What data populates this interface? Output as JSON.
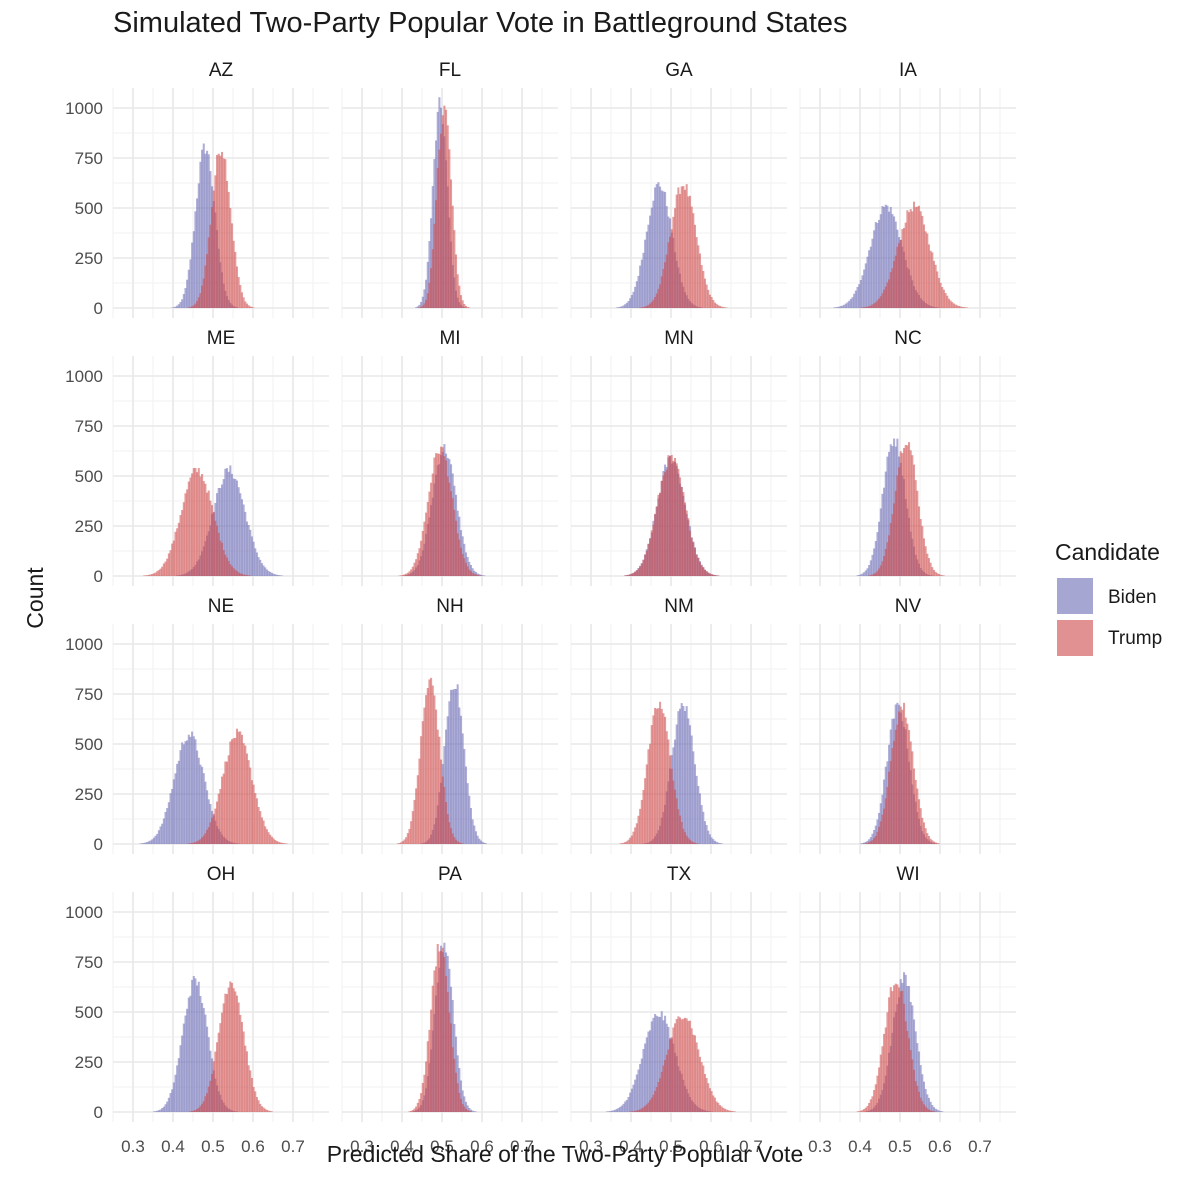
{
  "chart_data": {
    "type": "histogram",
    "title": "Simulated Two-Party Popular Vote in Battleground States",
    "xlabel": "Predicted Share of the Two-Party Popular Vote",
    "ylabel": "Count",
    "x_range": [
      0.25,
      0.79
    ],
    "y_range": [
      -50,
      1100
    ],
    "x_ticks": [
      0.3,
      0.4,
      0.5,
      0.6,
      0.7
    ],
    "x_tick_labels": [
      "0.3",
      "0.4",
      "0.5",
      "0.6",
      "0.7"
    ],
    "y_ticks": [
      0,
      250,
      500,
      750,
      1000
    ],
    "y_tick_labels": [
      "0",
      "250",
      "500",
      "750",
      "1000"
    ],
    "grid": true,
    "legend": {
      "title": "Candidate",
      "placement": "right",
      "entries": [
        {
          "name": "Biden",
          "color": "#6a6ab4"
        },
        {
          "name": "Trump",
          "color": "#cd4848"
        }
      ]
    },
    "facets": [
      {
        "label": "AZ",
        "biden": {
          "mean": 0.48,
          "sd": 0.024,
          "peak": 820
        },
        "trump": {
          "mean": 0.52,
          "sd": 0.024,
          "peak": 820
        }
      },
      {
        "label": "FL",
        "biden": {
          "mean": 0.495,
          "sd": 0.018,
          "peak": 1030
        },
        "trump": {
          "mean": 0.505,
          "sd": 0.018,
          "peak": 1030
        }
      },
      {
        "label": "GA",
        "biden": {
          "mean": 0.47,
          "sd": 0.032,
          "peak": 630
        },
        "trump": {
          "mean": 0.53,
          "sd": 0.032,
          "peak": 630
        }
      },
      {
        "label": "IA",
        "biden": {
          "mean": 0.465,
          "sd": 0.04,
          "peak": 520
        },
        "trump": {
          "mean": 0.535,
          "sd": 0.04,
          "peak": 520
        }
      },
      {
        "label": "ME",
        "biden": {
          "mean": 0.54,
          "sd": 0.04,
          "peak": 540
        },
        "trump": {
          "mean": 0.46,
          "sd": 0.04,
          "peak": 540
        }
      },
      {
        "label": "MI",
        "biden": {
          "mean": 0.505,
          "sd": 0.03,
          "peak": 650
        },
        "trump": {
          "mean": 0.495,
          "sd": 0.03,
          "peak": 650
        }
      },
      {
        "label": "MN",
        "biden": {
          "mean": 0.5,
          "sd": 0.035,
          "peak": 600
        },
        "trump": {
          "mean": 0.5,
          "sd": 0.035,
          "peak": 600
        }
      },
      {
        "label": "NC",
        "biden": {
          "mean": 0.485,
          "sd": 0.028,
          "peak": 700
        },
        "trump": {
          "mean": 0.515,
          "sd": 0.028,
          "peak": 700
        }
      },
      {
        "label": "NE",
        "biden": {
          "mean": 0.44,
          "sd": 0.037,
          "peak": 560
        },
        "trump": {
          "mean": 0.56,
          "sd": 0.037,
          "peak": 560
        }
      },
      {
        "label": "NH",
        "biden": {
          "mean": 0.53,
          "sd": 0.024,
          "peak": 830
        },
        "trump": {
          "mean": 0.47,
          "sd": 0.024,
          "peak": 830
        }
      },
      {
        "label": "NM",
        "biden": {
          "mean": 0.53,
          "sd": 0.029,
          "peak": 710
        },
        "trump": {
          "mean": 0.47,
          "sd": 0.029,
          "peak": 710
        }
      },
      {
        "label": "NV",
        "biden": {
          "mean": 0.495,
          "sd": 0.028,
          "peak": 700
        },
        "trump": {
          "mean": 0.505,
          "sd": 0.028,
          "peak": 700
        }
      },
      {
        "label": "OH",
        "biden": {
          "mean": 0.455,
          "sd": 0.031,
          "peak": 670
        },
        "trump": {
          "mean": 0.545,
          "sd": 0.031,
          "peak": 670
        }
      },
      {
        "label": "PA",
        "biden": {
          "mean": 0.505,
          "sd": 0.023,
          "peak": 860
        },
        "trump": {
          "mean": 0.495,
          "sd": 0.023,
          "peak": 860
        }
      },
      {
        "label": "TX",
        "biden": {
          "mean": 0.47,
          "sd": 0.04,
          "peak": 500
        },
        "trump": {
          "mean": 0.53,
          "sd": 0.04,
          "peak": 500
        }
      },
      {
        "label": "WI",
        "biden": {
          "mean": 0.51,
          "sd": 0.029,
          "peak": 680
        },
        "trump": {
          "mean": 0.49,
          "sd": 0.029,
          "peak": 680
        }
      }
    ]
  }
}
